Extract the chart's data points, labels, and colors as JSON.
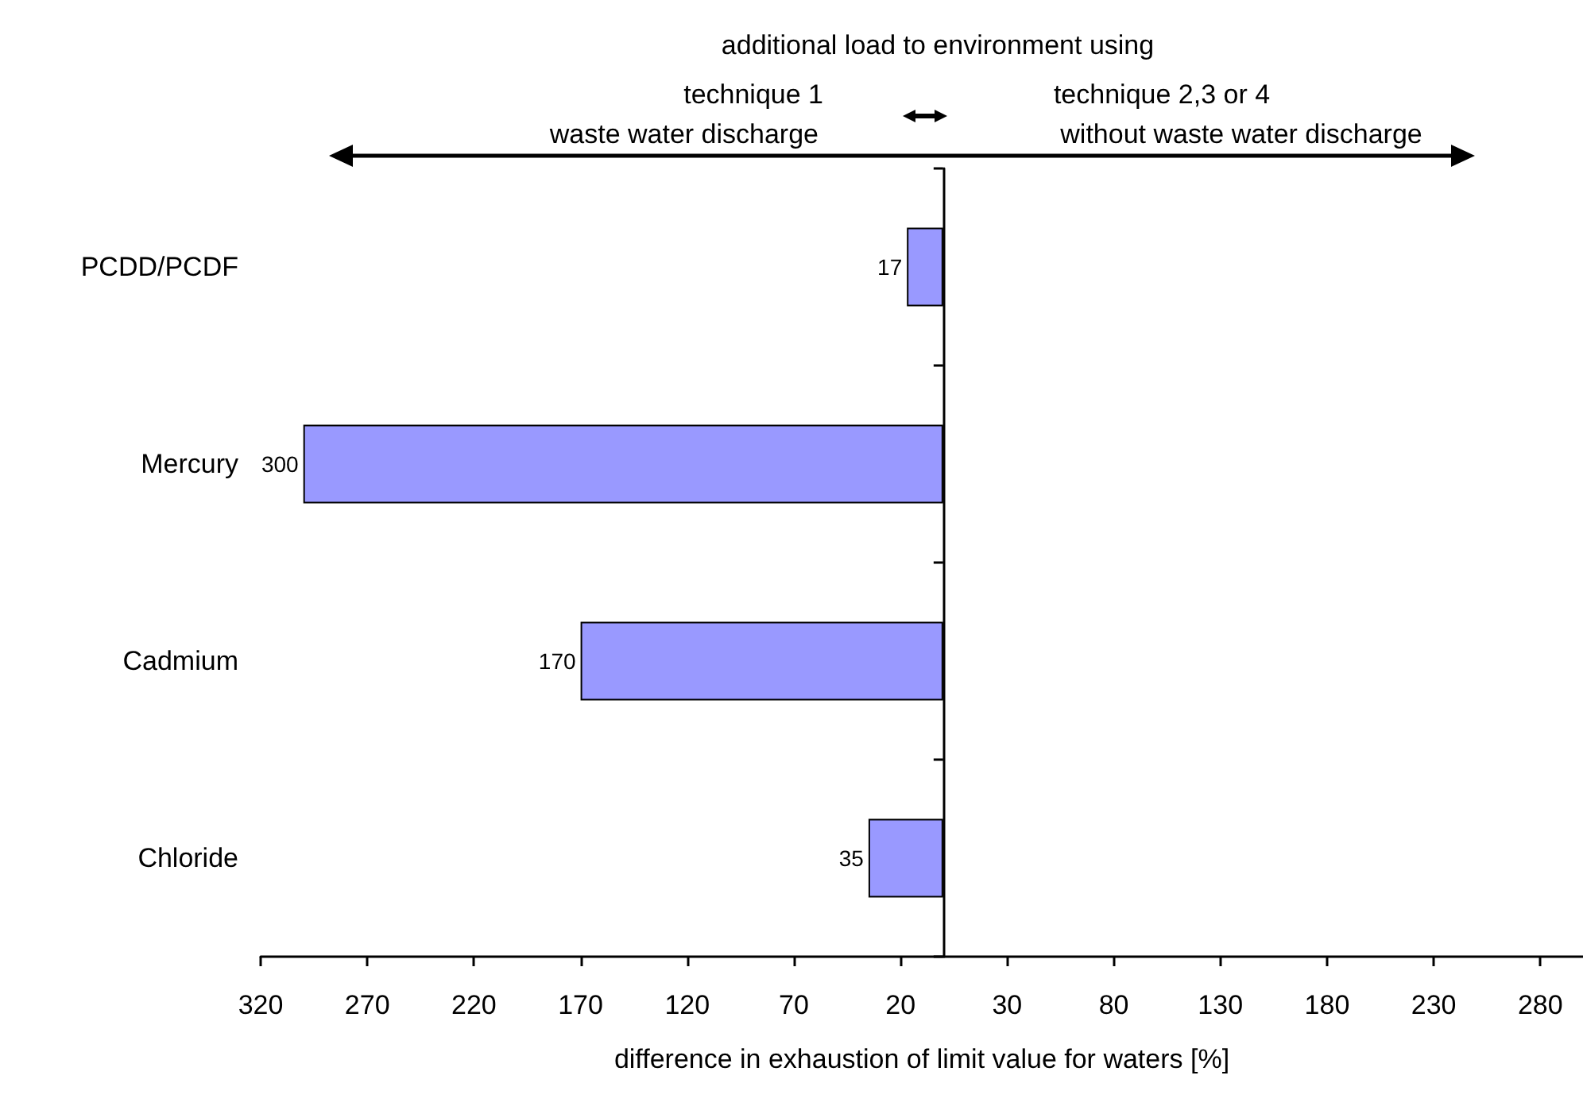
{
  "chart_data": {
    "type": "bar",
    "orientation": "horizontal",
    "categories": [
      "PCDD/PCDF",
      "Mercury",
      "Cadmium",
      "Chloride"
    ],
    "values": [
      17,
      300,
      170,
      35
    ],
    "value_labels": [
      "17",
      "300",
      "170",
      "35"
    ],
    "color": "#9999ff",
    "xlabel": "difference in exhaustion of limit value for waters [%]",
    "xlim": [
      320,
      -300
    ],
    "xticks": [
      320,
      270,
      220,
      170,
      120,
      70,
      20,
      {
        "value": -30,
        "label": "30"
      },
      {
        "value": -80,
        "label": "80"
      },
      {
        "value": -130,
        "label": "130"
      },
      {
        "value": -180,
        "label": "180"
      },
      {
        "value": -230,
        "label": "230"
      },
      {
        "value": -280,
        "label": "280"
      }
    ],
    "annotations": [
      "additional load to environment using",
      "technique 1",
      "waste water discharge",
      "technique 2,3 or 4",
      "without waste water discharge"
    ],
    "grid": false
  }
}
